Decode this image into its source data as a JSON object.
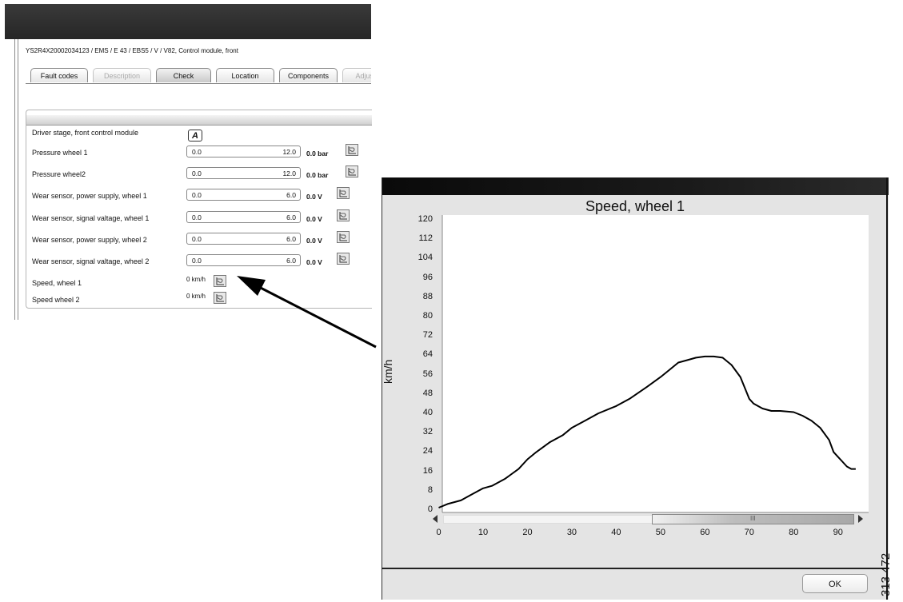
{
  "app": {
    "breadcrumb": "YS2R4X20002034123 / EMS / E 43 / EBS5 / V / V82, Control module, front",
    "tabs": [
      {
        "label": "Fault codes",
        "state": "normal"
      },
      {
        "label": "Description",
        "state": "disabled"
      },
      {
        "label": "Check",
        "state": "active"
      },
      {
        "label": "Location",
        "state": "normal"
      },
      {
        "label": "Components",
        "state": "normal"
      },
      {
        "label": "Adjusti",
        "state": "disabled"
      }
    ],
    "driver_stage": {
      "label": "Driver stage, front control module",
      "button_label": "A"
    },
    "rows": [
      {
        "label": "Pressure wheel 1",
        "min": "0.0",
        "max": "12.0",
        "reading": "0.0 bar"
      },
      {
        "label": "Pressure wheel2",
        "min": "0.0",
        "max": "12.0",
        "reading": "0.0 bar"
      },
      {
        "label": "Wear sensor, power supply, wheel 1",
        "min": "0.0",
        "max": "6.0",
        "reading": "0.0 V"
      },
      {
        "label": "Wear sensor, signal valtage, wheel 1",
        "min": "0.0",
        "max": "6.0",
        "reading": "0.0 V"
      },
      {
        "label": "Wear sensor, power supply, wheel 2",
        "min": "0.0",
        "max": "6.0",
        "reading": "0.0 V"
      },
      {
        "label": "Wear sensor, signal valtage, wheel 2",
        "min": "0.0",
        "max": "6.0",
        "reading": "0.0 V"
      }
    ],
    "speeds": [
      {
        "label": "Speed, wheel 1",
        "reading": "0 km/h"
      },
      {
        "label": "Speed wheel 2",
        "reading": "0 km/h"
      }
    ],
    "icons": {
      "graph_button": "graph-icon"
    }
  },
  "graph_window": {
    "ok_label": "OK",
    "scroll_grip": "III"
  },
  "figure_number": "313 472",
  "chart_data": {
    "type": "line",
    "title": "Speed, wheel 1",
    "xlabel": "",
    "ylabel": "km/h",
    "xlim": [
      -1,
      96
    ],
    "ylim": [
      -1,
      122
    ],
    "x_ticks": [
      0,
      10,
      20,
      30,
      40,
      50,
      60,
      70,
      80,
      90
    ],
    "y_ticks": [
      0,
      8,
      16,
      24,
      32,
      40,
      48,
      56,
      64,
      72,
      80,
      88,
      96,
      104,
      112,
      120
    ],
    "grid": false,
    "series": [
      {
        "color": "#000000",
        "x": [
          0,
          2,
          5,
          7,
          10,
          12,
          15,
          18,
          20,
          22,
          25,
          28,
          30,
          33,
          36,
          40,
          43,
          47,
          50,
          52,
          54,
          56,
          58,
          60,
          62,
          64,
          66,
          68,
          70,
          71,
          73,
          75,
          77,
          80,
          82,
          84,
          86,
          88,
          89,
          90,
          91,
          92,
          93,
          94
        ],
        "y": [
          1,
          2.5,
          4,
          6,
          9,
          10,
          13,
          17,
          21,
          24,
          28,
          31,
          34,
          37,
          40,
          43,
          46,
          51,
          55,
          58,
          61,
          62,
          63,
          63.5,
          63.5,
          63,
          60,
          55,
          46,
          44,
          42,
          41,
          41,
          40.5,
          39,
          37,
          34,
          29,
          24,
          22,
          20,
          18,
          17,
          17
        ]
      }
    ]
  }
}
